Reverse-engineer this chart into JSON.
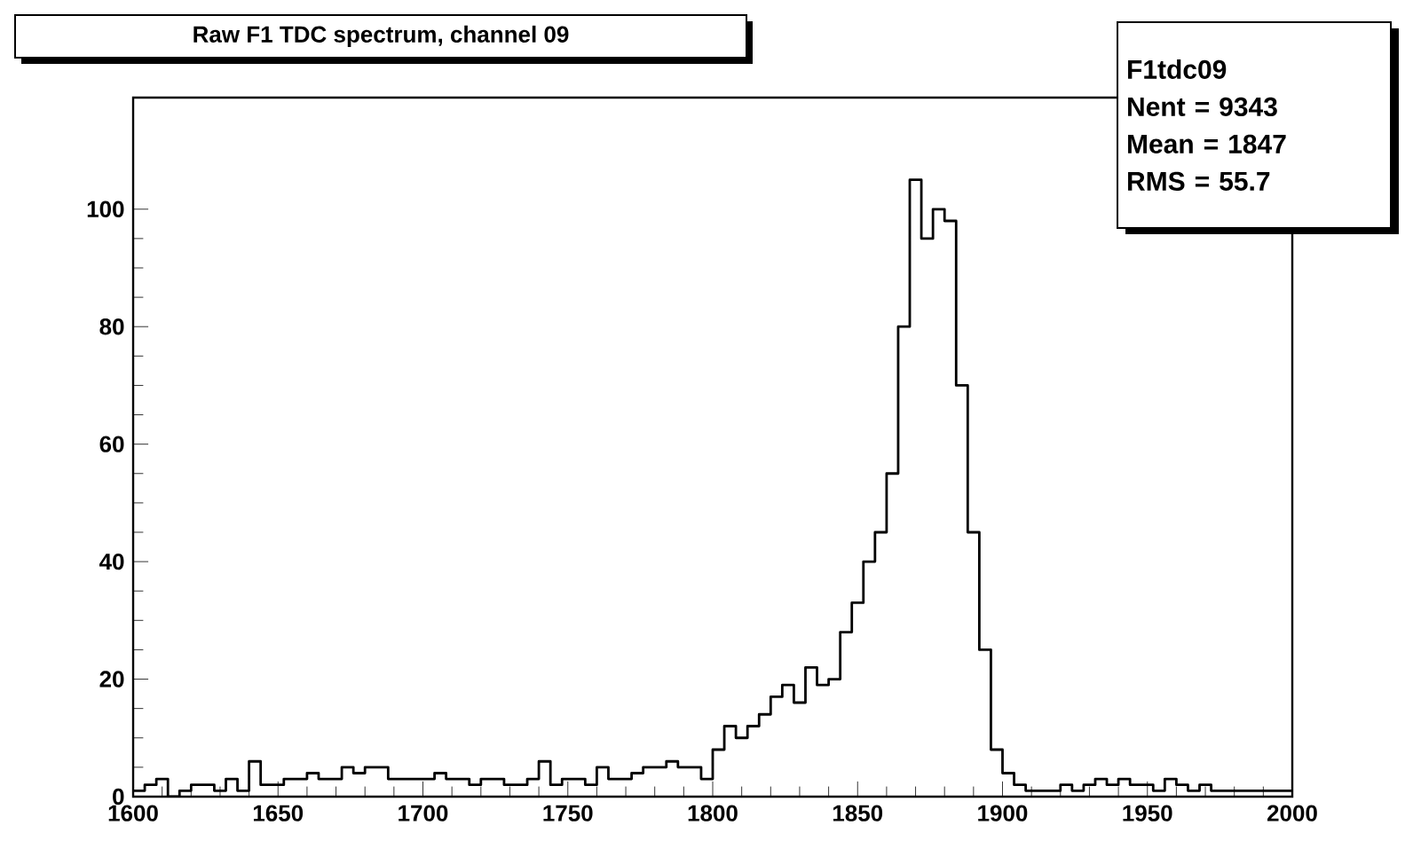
{
  "chart_data": {
    "type": "histogram",
    "title": "Raw F1 TDC spectrum, channel 09",
    "bins": [
      1600,
      1604,
      1608,
      1612,
      1616,
      1620,
      1624,
      1628,
      1632,
      1636,
      1640,
      1644,
      1648,
      1652,
      1656,
      1660,
      1664,
      1668,
      1672,
      1676,
      1680,
      1684,
      1688,
      1692,
      1696,
      1700,
      1704,
      1708,
      1712,
      1716,
      1720,
      1724,
      1728,
      1732,
      1736,
      1740,
      1744,
      1748,
      1752,
      1756,
      1760,
      1764,
      1768,
      1772,
      1776,
      1780,
      1784,
      1788,
      1792,
      1796,
      1800,
      1804,
      1808,
      1812,
      1816,
      1820,
      1824,
      1828,
      1832,
      1836,
      1840,
      1844,
      1848,
      1852,
      1856,
      1860,
      1864,
      1868,
      1872,
      1876,
      1880,
      1884,
      1888,
      1892,
      1896,
      1900,
      1904,
      1908,
      1912,
      1916,
      1920,
      1924,
      1928,
      1932,
      1936,
      1940,
      1944,
      1948,
      1952,
      1956,
      1960,
      1964,
      1968,
      1972,
      1976,
      1980,
      1984,
      1988,
      1992,
      1996,
      2000
    ],
    "values": [
      1,
      2,
      3,
      0,
      1,
      2,
      2,
      1,
      3,
      1,
      6,
      2,
      2,
      3,
      3,
      4,
      3,
      3,
      5,
      4,
      5,
      5,
      3,
      3,
      3,
      3,
      4,
      3,
      3,
      2,
      3,
      3,
      2,
      2,
      3,
      6,
      2,
      3,
      3,
      2,
      5,
      3,
      3,
      4,
      5,
      5,
      6,
      5,
      5,
      3,
      8,
      12,
      10,
      12,
      14,
      17,
      19,
      16,
      22,
      19,
      20,
      28,
      33,
      40,
      45,
      55,
      80,
      105,
      95,
      100,
      98,
      70,
      45,
      25,
      8,
      4,
      2,
      1,
      1,
      1,
      2,
      1,
      2,
      3,
      2,
      3,
      2,
      2,
      1,
      3,
      2,
      1,
      2,
      1,
      1,
      1,
      1,
      1,
      1,
      1
    ],
    "color": "#000000",
    "xlim": [
      1600,
      2000
    ],
    "ylim": [
      0,
      119
    ],
    "xticks": [
      1600,
      1650,
      1700,
      1750,
      1800,
      1850,
      1900,
      1950,
      2000
    ],
    "yticks": [
      0,
      20,
      40,
      60,
      80,
      100
    ],
    "grid": false,
    "annotations": [
      "F1tdc09",
      "Nent = 9343",
      "Mean = 1847",
      "RMS = 55.7"
    ]
  }
}
